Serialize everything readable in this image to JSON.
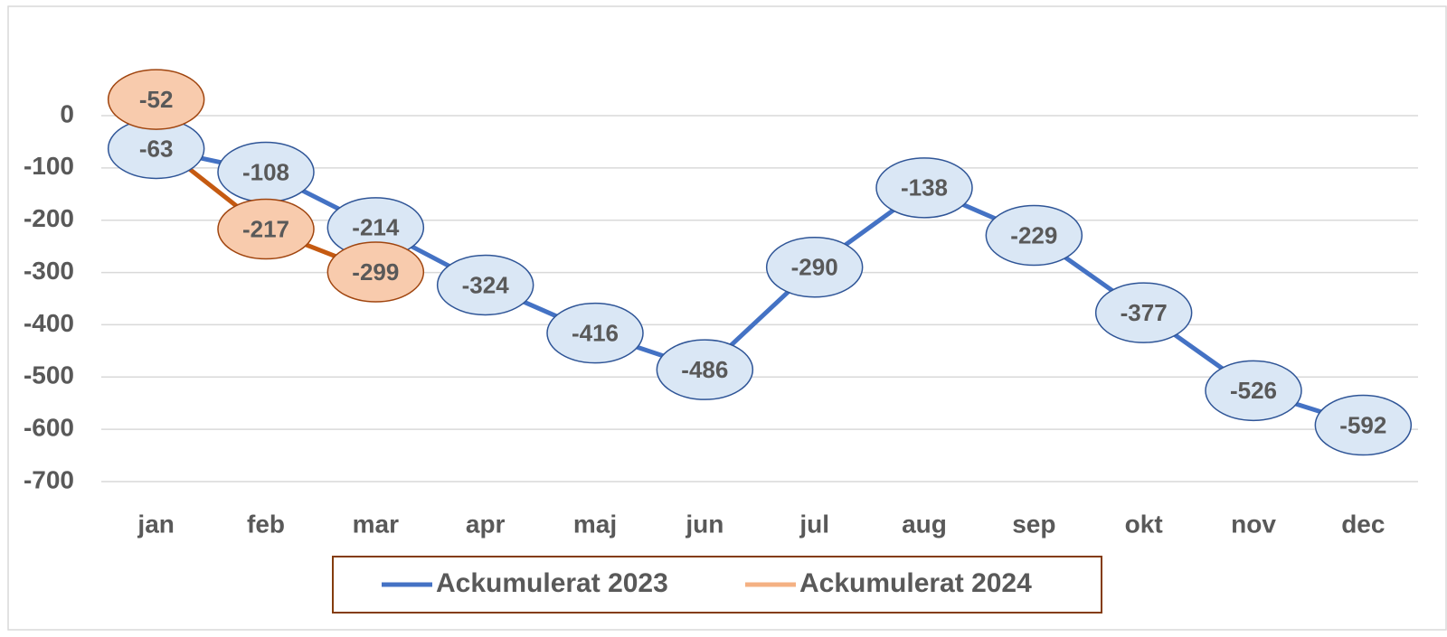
{
  "chart_data": {
    "type": "line",
    "categories": [
      "jan",
      "feb",
      "mar",
      "apr",
      "maj",
      "jun",
      "jul",
      "aug",
      "sep",
      "okt",
      "nov",
      "dec"
    ],
    "series": [
      {
        "name": "Ackumulerat 2023",
        "color": "#4472c4",
        "label_fill": "#dae7f5",
        "label_stroke": "#2f5597",
        "values": [
          -63,
          -108,
          -214,
          -324,
          -416,
          -486,
          -290,
          -138,
          -229,
          -377,
          -526,
          -592
        ]
      },
      {
        "name": "Ackumulerat 2024",
        "color": "#c55a11",
        "legend_color": "#f4b183",
        "label_fill": "#f8cbad",
        "label_stroke": "#a0450f",
        "values": [
          -52,
          -217,
          -299,
          null,
          null,
          null,
          null,
          null,
          null,
          null,
          null,
          null
        ]
      }
    ],
    "ylim": [
      -700,
      0
    ],
    "yticks": [
      0,
      -100,
      -200,
      -300,
      -400,
      -500,
      -600,
      -700
    ],
    "grid": true,
    "legend": "bottom"
  }
}
